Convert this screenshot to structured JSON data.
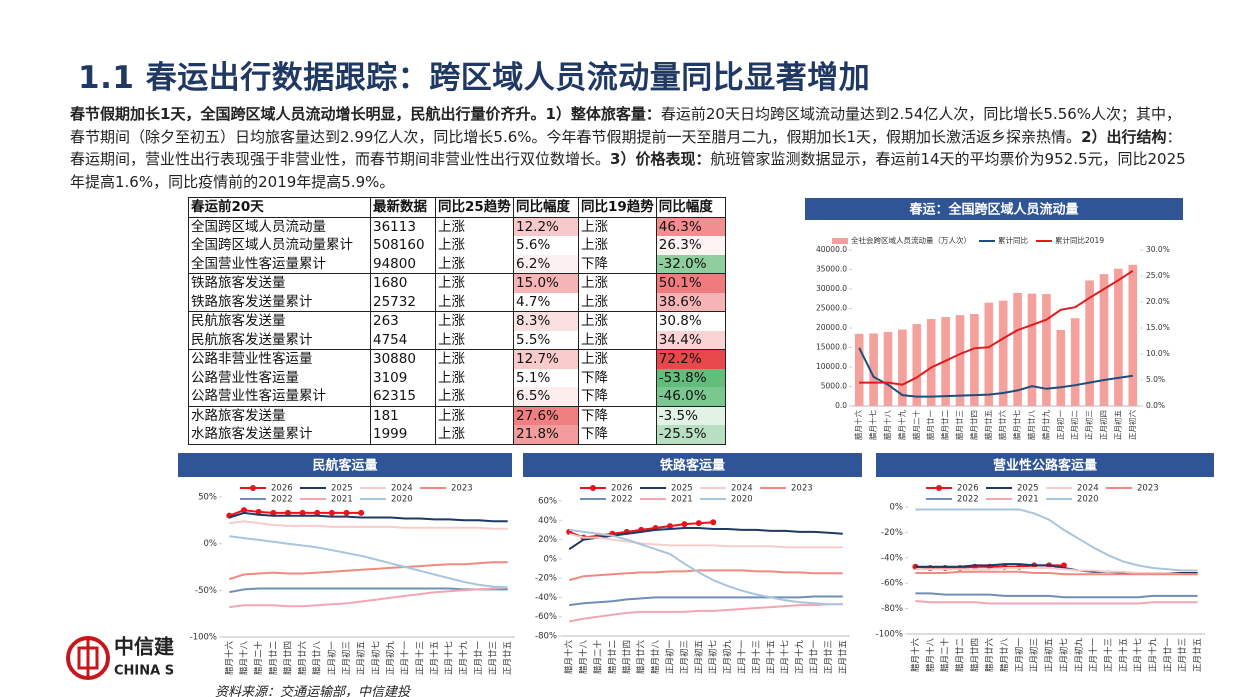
{
  "title": "1.1 春运出行数据跟踪：跨区域人员流动量同比显著增加",
  "paragraph": [
    "春节假期加长1天，全国跨区域人员流动增长明显，民航出行量价齐升。1）整体旅客量：",
    "春运前20天日均跨区域流动量达到2.54亿人次，同比增长5.56%人次；其中，春节期间（除夕至初五）日均旅客量达到2.99亿人次，同比增长5.6%。今年春节假期提前一天至腊月二九，假期加长1天，假期加长激活返乡探亲热情。",
    "2）出行结构",
    "：春运期间，营业性出行表现强于非营业性，而春节期间非营业性出行双位数增长。",
    "3）价格表现：",
    "航班管家监测数据显示，春运前14天的平均票价为952.5元，同比2025年提高1.6%，同比疫情前的2019年提高5.9%。"
  ],
  "table": {
    "header": [
      "春运前20天",
      "最新数据",
      "同比25趋势",
      "同比幅度",
      "同比19趋势",
      "同比幅度"
    ],
    "rows": [
      [
        "全国跨区域人员流动量",
        "36113",
        "上涨",
        "12.2%",
        "上涨",
        "46.3%"
      ],
      [
        "全国跨区域人员流动量累计",
        "508160",
        "上涨",
        "5.6%",
        "上涨",
        "26.3%"
      ],
      [
        "全国营业性客运量累计",
        "94800",
        "上涨",
        "6.2%",
        "下降",
        "-32.0%"
      ],
      [
        "铁路旅客发送量",
        "1680",
        "上涨",
        "15.0%",
        "上涨",
        "50.1%"
      ],
      [
        "铁路旅客发送量累计",
        "25732",
        "上涨",
        "4.7%",
        "上涨",
        "38.6%"
      ],
      [
        "民航旅客发送量",
        "263",
        "上涨",
        "8.3%",
        "上涨",
        "30.8%"
      ],
      [
        "民航旅客发送量累计",
        "4754",
        "上涨",
        "5.5%",
        "上涨",
        "34.4%"
      ],
      [
        "公路非营业性客运量",
        "30880",
        "上涨",
        "12.7%",
        "上涨",
        "72.2%"
      ],
      [
        "公路营业性客运量",
        "3109",
        "上涨",
        "5.1%",
        "下降",
        "-53.8%"
      ],
      [
        "公路营业性客运量累计",
        "62315",
        "上涨",
        "6.5%",
        "下降",
        "-46.0%"
      ],
      [
        "水路旅客发送量",
        "181",
        "上涨",
        "27.6%",
        "下降",
        "-3.5%"
      ],
      [
        "水路旅客发送量累计",
        "1999",
        "上涨",
        "21.8%",
        "下降",
        "-25.5%"
      ]
    ],
    "fills": [
      [
        "#f8c9cb",
        "#f28e90"
      ],
      [
        "#ffffff",
        "#fdf3f3"
      ],
      [
        "#fdf0f0",
        "#8fcf9d"
      ],
      [
        "#f5b5b7",
        "#f07b7e"
      ],
      [
        "#ffffff",
        "#f7b4b5"
      ],
      [
        "#fbe0e0",
        "#ffffff"
      ],
      [
        "#ffffff",
        "#fad4d4"
      ],
      [
        "#f8caca",
        "#e8484b"
      ],
      [
        "#ffffff",
        "#63be7b"
      ],
      [
        "#fdeeee",
        "#7ac78f"
      ],
      [
        "#ef7f81",
        "#e3f2e6"
      ],
      [
        "#f29c9d",
        "#b7dfc1"
      ]
    ]
  },
  "chart_data": [
    {
      "type": "bar_line",
      "title": "春运：全国跨区域人员流动量",
      "categories": [
        "腊月十六",
        "腊月十七",
        "腊月十八",
        "腊月十九",
        "腊月二十",
        "腊月廿一",
        "腊月廿二",
        "腊月廿三",
        "腊月廿四",
        "腊月廿五",
        "腊月廿六",
        "腊月廿七",
        "腊月廿八",
        "腊月廿九",
        "正月初一",
        "正月初二",
        "正月初三",
        "正月初四",
        "正月初五",
        "正月初六"
      ],
      "series": [
        {
          "name": "全社会跨区域人员流动量（万人次）",
          "color": "#f4a09c",
          "kind": "bar",
          "values": [
            18500,
            18600,
            19000,
            19600,
            21000,
            22300,
            22800,
            23300,
            23600,
            26500,
            27000,
            29000,
            28800,
            28700,
            19500,
            22500,
            32200,
            33800,
            35200,
            36200
          ]
        },
        {
          "name": "累计同比",
          "color": "#1f4e79",
          "kind": "line",
          "axis": "y2",
          "values": [
            11.2,
            5.6,
            4.1,
            2.1,
            1.8,
            1.8,
            1.9,
            2.0,
            2.1,
            2.2,
            2.5,
            3.0,
            3.8,
            3.3,
            3.6,
            4.0,
            4.5,
            5.0,
            5.4,
            5.8
          ]
        },
        {
          "name": "累计同比2019",
          "color": "#e31a1c",
          "kind": "line",
          "axis": "y2",
          "values": [
            4.5,
            4.5,
            4.5,
            4.1,
            5.5,
            7.4,
            8.7,
            10.0,
            11.1,
            11.3,
            13.0,
            14.6,
            15.6,
            16.6,
            18.5,
            19.0,
            20.8,
            22.5,
            24.2,
            26.0
          ]
        }
      ],
      "ylim": [
        0,
        40000
      ],
      "yticks": [
        {
          "value": 0,
          "label": "0.0"
        },
        {
          "value": 5000,
          "label": "5000.0"
        },
        {
          "value": 10000,
          "label": "10000.0"
        },
        {
          "value": 15000,
          "label": "15000.0"
        },
        {
          "value": 20000,
          "label": "20000.0"
        },
        {
          "value": 25000,
          "label": "25000.0"
        },
        {
          "value": 30000,
          "label": "30000.0"
        },
        {
          "value": 35000,
          "label": "35000.0"
        },
        {
          "value": 40000,
          "label": "40000.0"
        }
      ],
      "y2lim": [
        0,
        30
      ],
      "y2ticks": [
        {
          "value": 0,
          "label": "0.0%"
        },
        {
          "value": 5,
          "label": "5.0%"
        },
        {
          "value": 10,
          "label": "10.0%"
        },
        {
          "value": 15,
          "label": "15.0%"
        },
        {
          "value": 20,
          "label": "20.0%"
        },
        {
          "value": 25,
          "label": "25.0%"
        },
        {
          "value": 30,
          "label": "30.0%"
        }
      ]
    },
    {
      "type": "line",
      "title": "民航客运量",
      "categories": [
        "腊月十六",
        "腊月十八",
        "腊月二十",
        "腊月廿二",
        "腊月廿四",
        "腊月廿六",
        "腊月廿八",
        "正月初一",
        "正月初三",
        "正月初五",
        "正月初七",
        "正月初九",
        "正月十一",
        "正月十三",
        "正月十五",
        "正月十七",
        "正月十九",
        "正月廿一",
        "正月廿三",
        "正月廿五"
      ],
      "series": [
        {
          "name": "2026",
          "color": "#e8141b",
          "markers": true,
          "values": [
            30,
            36,
            34,
            33,
            33,
            33,
            33,
            33,
            33,
            33,
            null,
            null,
            null,
            null,
            null,
            null,
            null,
            null,
            null,
            null
          ]
        },
        {
          "name": "2025",
          "color": "#1f3864",
          "values": [
            28,
            33,
            31,
            30,
            30,
            30,
            30,
            29,
            29,
            28,
            28,
            28,
            27,
            27,
            26,
            26,
            25,
            25,
            24,
            24
          ]
        },
        {
          "name": "2024",
          "color": "#f6cdca",
          "values": [
            22,
            24,
            22,
            20,
            19,
            19,
            19,
            18,
            18,
            18,
            18,
            18,
            17,
            17,
            17,
            17,
            17,
            17,
            16,
            16
          ]
        },
        {
          "name": "2023",
          "color": "#f08a80",
          "values": [
            -38,
            -33,
            -32,
            -31,
            -32,
            -32,
            -31,
            -30,
            -29,
            -28,
            -27,
            -26,
            -25,
            -24,
            -23,
            -22,
            -22,
            -21,
            -20,
            -20
          ]
        },
        {
          "name": "2022",
          "color": "#6f8fb8",
          "values": [
            -52,
            -49,
            -48,
            -48,
            -48,
            -48,
            -48,
            -48,
            -48,
            -48,
            -48,
            -48,
            -48,
            -48,
            -48,
            -48,
            -49,
            -49,
            -49,
            -49
          ]
        },
        {
          "name": "2021",
          "color": "#f4a6b0",
          "values": [
            -68,
            -66,
            -66,
            -66,
            -67,
            -67,
            -66,
            -65,
            -64,
            -62,
            -60,
            -58,
            -56,
            -54,
            -52,
            -51,
            -50,
            -49,
            -48,
            -47
          ]
        },
        {
          "name": "2020",
          "color": "#a9c4de",
          "values": [
            8,
            6,
            4,
            2,
            0,
            -2,
            -4,
            -7,
            -10,
            -13,
            -17,
            -21,
            -25,
            -29,
            -33,
            -37,
            -41,
            -44,
            -46,
            -47
          ]
        }
      ],
      "ylim": [
        -100,
        50
      ],
      "yticks": [
        {
          "value": 50,
          "label": "50%"
        },
        {
          "value": 0,
          "label": "0%"
        },
        {
          "value": -50,
          "label": "-50%"
        },
        {
          "value": -100,
          "label": "-100%"
        }
      ]
    },
    {
      "type": "line",
      "title": "铁路客运量",
      "categories": [
        "腊月十六",
        "腊月十八",
        "腊月二十",
        "腊月廿二",
        "腊月廿四",
        "腊月廿六",
        "腊月廿八",
        "正月初一",
        "正月初三",
        "正月初五",
        "正月初七",
        "正月初九",
        "正月十一",
        "正月十三",
        "正月十五",
        "正月十七",
        "正月十九",
        "正月廿一",
        "正月廿三",
        "正月廿五"
      ],
      "series": [
        {
          "name": "2026",
          "color": "#e8141b",
          "markers": true,
          "values": [
            28,
            22,
            24,
            26,
            28,
            30,
            32,
            34,
            36,
            37,
            38,
            null,
            null,
            null,
            null,
            null,
            null,
            null,
            null,
            null
          ]
        },
        {
          "name": "2025",
          "color": "#1f3864",
          "values": [
            10,
            20,
            22,
            24,
            26,
            28,
            30,
            31,
            32,
            32,
            31,
            31,
            30,
            30,
            29,
            29,
            28,
            28,
            27,
            26
          ]
        },
        {
          "name": "2024",
          "color": "#f6cdca",
          "values": [
            26,
            22,
            22,
            20,
            18,
            16,
            15,
            14,
            14,
            14,
            14,
            13,
            13,
            13,
            13,
            12,
            12,
            12,
            12,
            12
          ]
        },
        {
          "name": "2023",
          "color": "#f08a80",
          "values": [
            -22,
            -18,
            -17,
            -16,
            -15,
            -14,
            -14,
            -13,
            -13,
            -12,
            -12,
            -12,
            -12,
            -13,
            -13,
            -14,
            -14,
            -15,
            -15,
            -15
          ]
        },
        {
          "name": "2022",
          "color": "#6f8fb8",
          "values": [
            -48,
            -46,
            -45,
            -44,
            -42,
            -41,
            -40,
            -40,
            -40,
            -40,
            -40,
            -40,
            -40,
            -40,
            -40,
            -40,
            -40,
            -39,
            -39,
            -39
          ]
        },
        {
          "name": "2021",
          "color": "#f4a6b0",
          "values": [
            -65,
            -62,
            -60,
            -58,
            -56,
            -55,
            -55,
            -55,
            -55,
            -54,
            -54,
            -53,
            -52,
            -51,
            -50,
            -49,
            -48,
            -48,
            -47,
            -47
          ]
        },
        {
          "name": "2020",
          "color": "#a9c4de",
          "values": [
            30,
            28,
            26,
            24,
            20,
            15,
            10,
            5,
            -5,
            -14,
            -22,
            -28,
            -33,
            -37,
            -40,
            -43,
            -45,
            -46,
            -47,
            -47
          ]
        }
      ],
      "ylim": [
        -80,
        60
      ],
      "yticks": [
        {
          "value": 60,
          "label": "60%"
        },
        {
          "value": 40,
          "label": "40%"
        },
        {
          "value": 20,
          "label": "20%"
        },
        {
          "value": 0,
          "label": "0%"
        },
        {
          "value": -20,
          "label": "-20%"
        },
        {
          "value": -40,
          "label": "-40%"
        },
        {
          "value": -60,
          "label": "-60%"
        },
        {
          "value": -80,
          "label": "-80%"
        }
      ]
    },
    {
      "type": "line",
      "title": "营业性公路客运量",
      "categories": [
        "腊月十六",
        "腊月十八",
        "腊月二十",
        "腊月廿二",
        "腊月廿四",
        "腊月廿六",
        "腊月廿八",
        "正月初一",
        "正月初三",
        "正月初五",
        "正月初七",
        "正月初九",
        "正月十一",
        "正月十三",
        "正月十五",
        "正月十七",
        "正月十九",
        "正月廿一",
        "正月廿三",
        "正月廿五"
      ],
      "series": [
        {
          "name": "2026",
          "color": "#e8141b",
          "markers": true,
          "values": [
            -47,
            -48,
            -48,
            -48,
            -47,
            -47,
            -47,
            -47,
            -46,
            -46,
            -46,
            null,
            null,
            null,
            null,
            null,
            null,
            null,
            null,
            null
          ]
        },
        {
          "name": "2025",
          "color": "#1f3864",
          "values": [
            -47,
            -47,
            -47,
            -47,
            -46,
            -46,
            -45,
            -45,
            -46,
            -46,
            -48,
            -50,
            -51,
            -51,
            -52,
            -52,
            -52,
            -52,
            -52,
            -52
          ]
        },
        {
          "name": "2024",
          "color": "#f6cdca",
          "values": [
            -49,
            -49,
            -49,
            -49,
            -49,
            -49,
            -48,
            -48,
            -48,
            -48,
            -49,
            -50,
            -50,
            -51,
            -51,
            -52,
            -52,
            -52,
            -53,
            -53
          ]
        },
        {
          "name": "2023",
          "color": "#f08a80",
          "values": [
            -52,
            -52,
            -52,
            -51,
            -51,
            -51,
            -51,
            -51,
            -52,
            -52,
            -53,
            -53,
            -53,
            -53,
            -53,
            -53,
            -53,
            -53,
            -53,
            -53
          ]
        },
        {
          "name": "2022",
          "color": "#6f8fb8",
          "values": [
            -68,
            -68,
            -69,
            -69,
            -69,
            -69,
            -70,
            -70,
            -70,
            -70,
            -71,
            -71,
            -71,
            -71,
            -71,
            -71,
            -70,
            -70,
            -70,
            -70
          ]
        },
        {
          "name": "2021",
          "color": "#f4a6b0",
          "values": [
            -74,
            -75,
            -75,
            -75,
            -75,
            -76,
            -76,
            -76,
            -76,
            -76,
            -76,
            -76,
            -76,
            -76,
            -76,
            -76,
            -75,
            -75,
            -75,
            -75
          ]
        },
        {
          "name": "2020",
          "color": "#a9c4de",
          "values": [
            -2,
            -2,
            -2,
            -2,
            -2,
            -2,
            -2,
            -2,
            -5,
            -10,
            -18,
            -25,
            -32,
            -38,
            -43,
            -46,
            -48,
            -49,
            -50,
            -50
          ]
        }
      ],
      "ylim": [
        -100,
        0
      ],
      "yticks": [
        {
          "value": 0,
          "label": "0%"
        },
        {
          "value": -20,
          "label": "-20%"
        },
        {
          "value": -40,
          "label": "-40%"
        },
        {
          "value": -60,
          "label": "-60%"
        },
        {
          "value": -80,
          "label": "-80%"
        },
        {
          "value": -100,
          "label": "-100%"
        }
      ]
    }
  ],
  "source": "资料来源：交通运输部，中信建投",
  "logo": {
    "name": "中信建",
    "english": "CHINA S"
  }
}
